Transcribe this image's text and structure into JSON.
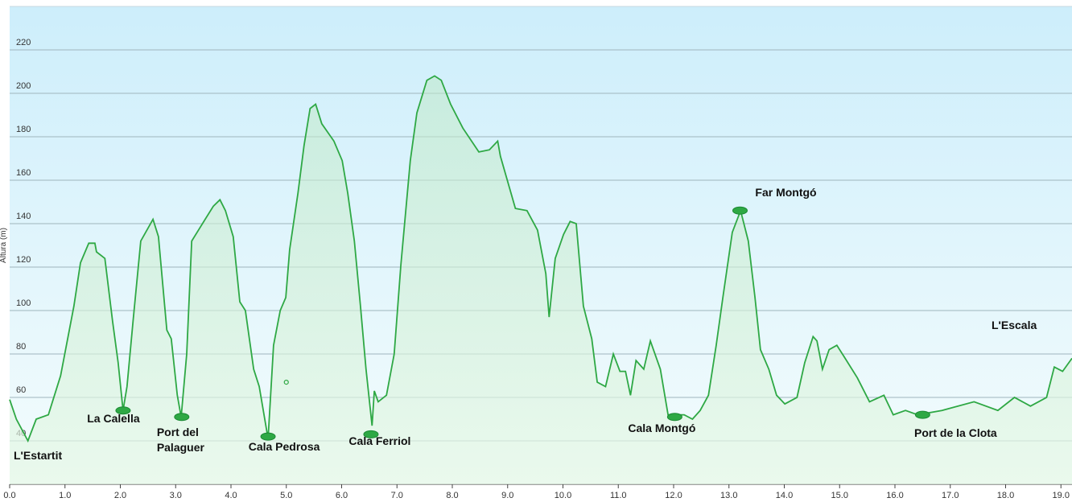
{
  "chart_data": {
    "type": "area",
    "y_label": "Altura (m)",
    "color": "#2ea844",
    "x": [
      0.0,
      0.12,
      0.33,
      0.48,
      0.7,
      0.92,
      1.16,
      1.28,
      1.43,
      1.54,
      1.57,
      1.72,
      1.86,
      1.96,
      2.05,
      2.12,
      2.23,
      2.37,
      2.59,
      2.69,
      2.84,
      2.92,
      3.03,
      3.1,
      3.2,
      3.29,
      3.46,
      3.68,
      3.8,
      3.9,
      4.04,
      4.16,
      4.26,
      4.41,
      4.51,
      4.67,
      4.77,
      4.89,
      4.99,
      5.06,
      5.21,
      5.32,
      5.43,
      5.53,
      5.64,
      5.86,
      6.01,
      6.11,
      6.23,
      6.34,
      6.44,
      6.55,
      6.59,
      6.66,
      6.81,
      6.95,
      7.07,
      7.24,
      7.36,
      7.54,
      7.68,
      7.8,
      7.97,
      8.19,
      8.48,
      8.67,
      8.82,
      8.87,
      9.14,
      9.35,
      9.54,
      9.69,
      9.75,
      9.86,
      10.01,
      10.13,
      10.24,
      10.37,
      10.52,
      10.62,
      10.77,
      10.91,
      11.03,
      11.13,
      11.22,
      11.32,
      11.46,
      11.58,
      11.76,
      11.9,
      12.02,
      12.19,
      12.34,
      12.48,
      12.63,
      12.77,
      12.89,
      13.06,
      13.21,
      13.35,
      13.47,
      13.57,
      13.72,
      13.86,
      14.01,
      14.23,
      14.37,
      14.52,
      14.59,
      14.69,
      14.81,
      14.95,
      15.1,
      15.32,
      15.54,
      15.8,
      15.97,
      16.19,
      16.41,
      16.85,
      17.43,
      17.86,
      18.16,
      18.45,
      18.74,
      18.88,
      19.03,
      19.2
    ],
    "values": [
      59,
      50,
      40,
      50,
      52,
      70,
      102,
      122,
      131,
      131,
      127,
      124,
      95,
      76,
      54,
      65,
      95,
      132,
      142,
      134,
      91,
      87,
      61,
      51,
      80,
      132,
      139,
      148,
      151,
      146,
      134,
      104,
      100,
      73,
      65,
      41,
      84,
      100,
      106,
      128,
      154,
      176,
      193,
      195,
      186,
      178,
      169,
      154,
      132,
      102,
      73,
      47,
      63,
      58,
      61,
      80,
      121,
      169,
      191,
      206,
      208,
      206,
      195,
      184,
      173,
      174,
      178,
      171,
      147,
      146,
      137,
      117,
      97,
      124,
      135,
      141,
      140,
      102,
      87,
      67,
      65,
      80,
      72,
      72,
      61,
      77,
      73,
      86,
      73,
      52,
      52,
      52,
      50,
      54,
      61,
      84,
      106,
      136,
      146,
      132,
      106,
      82,
      73,
      61,
      57,
      60,
      76,
      88,
      86,
      73,
      82,
      84,
      78,
      69,
      58,
      61,
      52,
      54,
      52,
      54,
      58,
      54,
      60,
      56,
      60,
      74,
      72,
      78
    ],
    "xlim": [
      0,
      19.2
    ],
    "ylim": [
      20,
      240
    ],
    "yticks": [
      40,
      60,
      80,
      100,
      120,
      140,
      160,
      180,
      200,
      220
    ],
    "xticks": [
      {
        "value": 0,
        "label": "0.0"
      },
      {
        "value": 1,
        "label": "1.0"
      },
      {
        "value": 2,
        "label": "2.0"
      },
      {
        "value": 3,
        "label": "3.0"
      },
      {
        "value": 4,
        "label": "4.0"
      },
      {
        "value": 5,
        "label": "5.0"
      },
      {
        "value": 6,
        "label": "6.0"
      },
      {
        "value": 7,
        "label": "7.0"
      },
      {
        "value": 8,
        "label": "8.0"
      },
      {
        "value": 9,
        "label": "9.0"
      },
      {
        "value": 10,
        "label": "10.0"
      },
      {
        "value": 11,
        "label": "11.0"
      },
      {
        "value": 12,
        "label": "12.0"
      },
      {
        "value": 13,
        "label": "13.0"
      },
      {
        "value": 14,
        "label": "14.0"
      },
      {
        "value": 15,
        "label": "15.0"
      },
      {
        "value": 16,
        "label": "16.0"
      },
      {
        "value": 17,
        "label": "17.0"
      },
      {
        "value": 18,
        "label": "18.0"
      },
      {
        "value": 19,
        "label": "19.0"
      }
    ],
    "grid": true,
    "waypoints": [
      {
        "name": "La Calella",
        "x": 2.05,
        "y": 54
      },
      {
        "name": "Port del Palaguer",
        "x": 3.11,
        "y": 51
      },
      {
        "name": "Cala Pedrosa",
        "x": 4.67,
        "y": 42
      },
      {
        "x": 5.0,
        "y": 67
      },
      {
        "name": "Cala Ferriol",
        "x": 6.53,
        "y": 43
      },
      {
        "name": "Cala Montgó",
        "x": 12.02,
        "y": 51
      },
      {
        "name": "Far Montgó",
        "x": 13.2,
        "y": 146
      },
      {
        "name": "Port de la Clota",
        "x": 16.5,
        "y": 52
      }
    ],
    "annotations": [
      {
        "text": "L'Estartit"
      },
      {
        "text": "L'Escala"
      }
    ]
  }
}
